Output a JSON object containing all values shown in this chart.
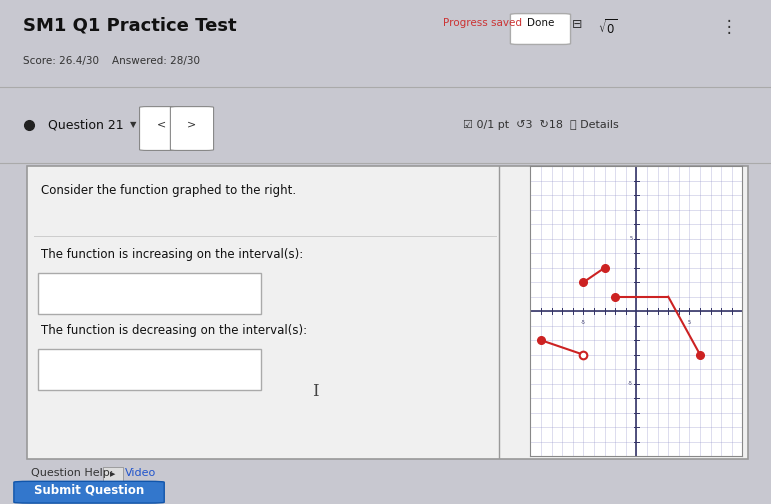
{
  "title": "SM1 Q1 Practice Test",
  "subtitle": "Score: 26.4/30    Answered: 28/30",
  "question_label": "Question 21",
  "consider_text": "Consider the function graphed to the right.",
  "increasing_label": "The function is increasing on the interval(s):",
  "decreasing_label": "The function is decreasing on the interval(s):",
  "help_text": "Question Help:",
  "video_text": "Video",
  "submit_text": "Submit Question",
  "progress_text": "Progress saved",
  "done_text": "Done",
  "bg_color": "#c8c8d0",
  "panel_bg": "#e8e8ec",
  "white": "#ffffff",
  "grid_color": "#9999cc",
  "axis_color": "#333366",
  "line_color": "#cc2222",
  "dot_color": "#cc2222",
  "xlim": [
    -10,
    10
  ],
  "ylim": [
    -10,
    10
  ],
  "seg1": {
    "x": [
      -9,
      -5
    ],
    "y": [
      -2,
      -3
    ]
  },
  "seg2": {
    "x": [
      -5,
      -3
    ],
    "y": [
      2,
      3
    ]
  },
  "seg3_flat": {
    "x": [
      -2,
      3
    ],
    "y": [
      1,
      1
    ]
  },
  "seg3_down": {
    "x": [
      3,
      6
    ],
    "y": [
      1,
      -3
    ]
  }
}
